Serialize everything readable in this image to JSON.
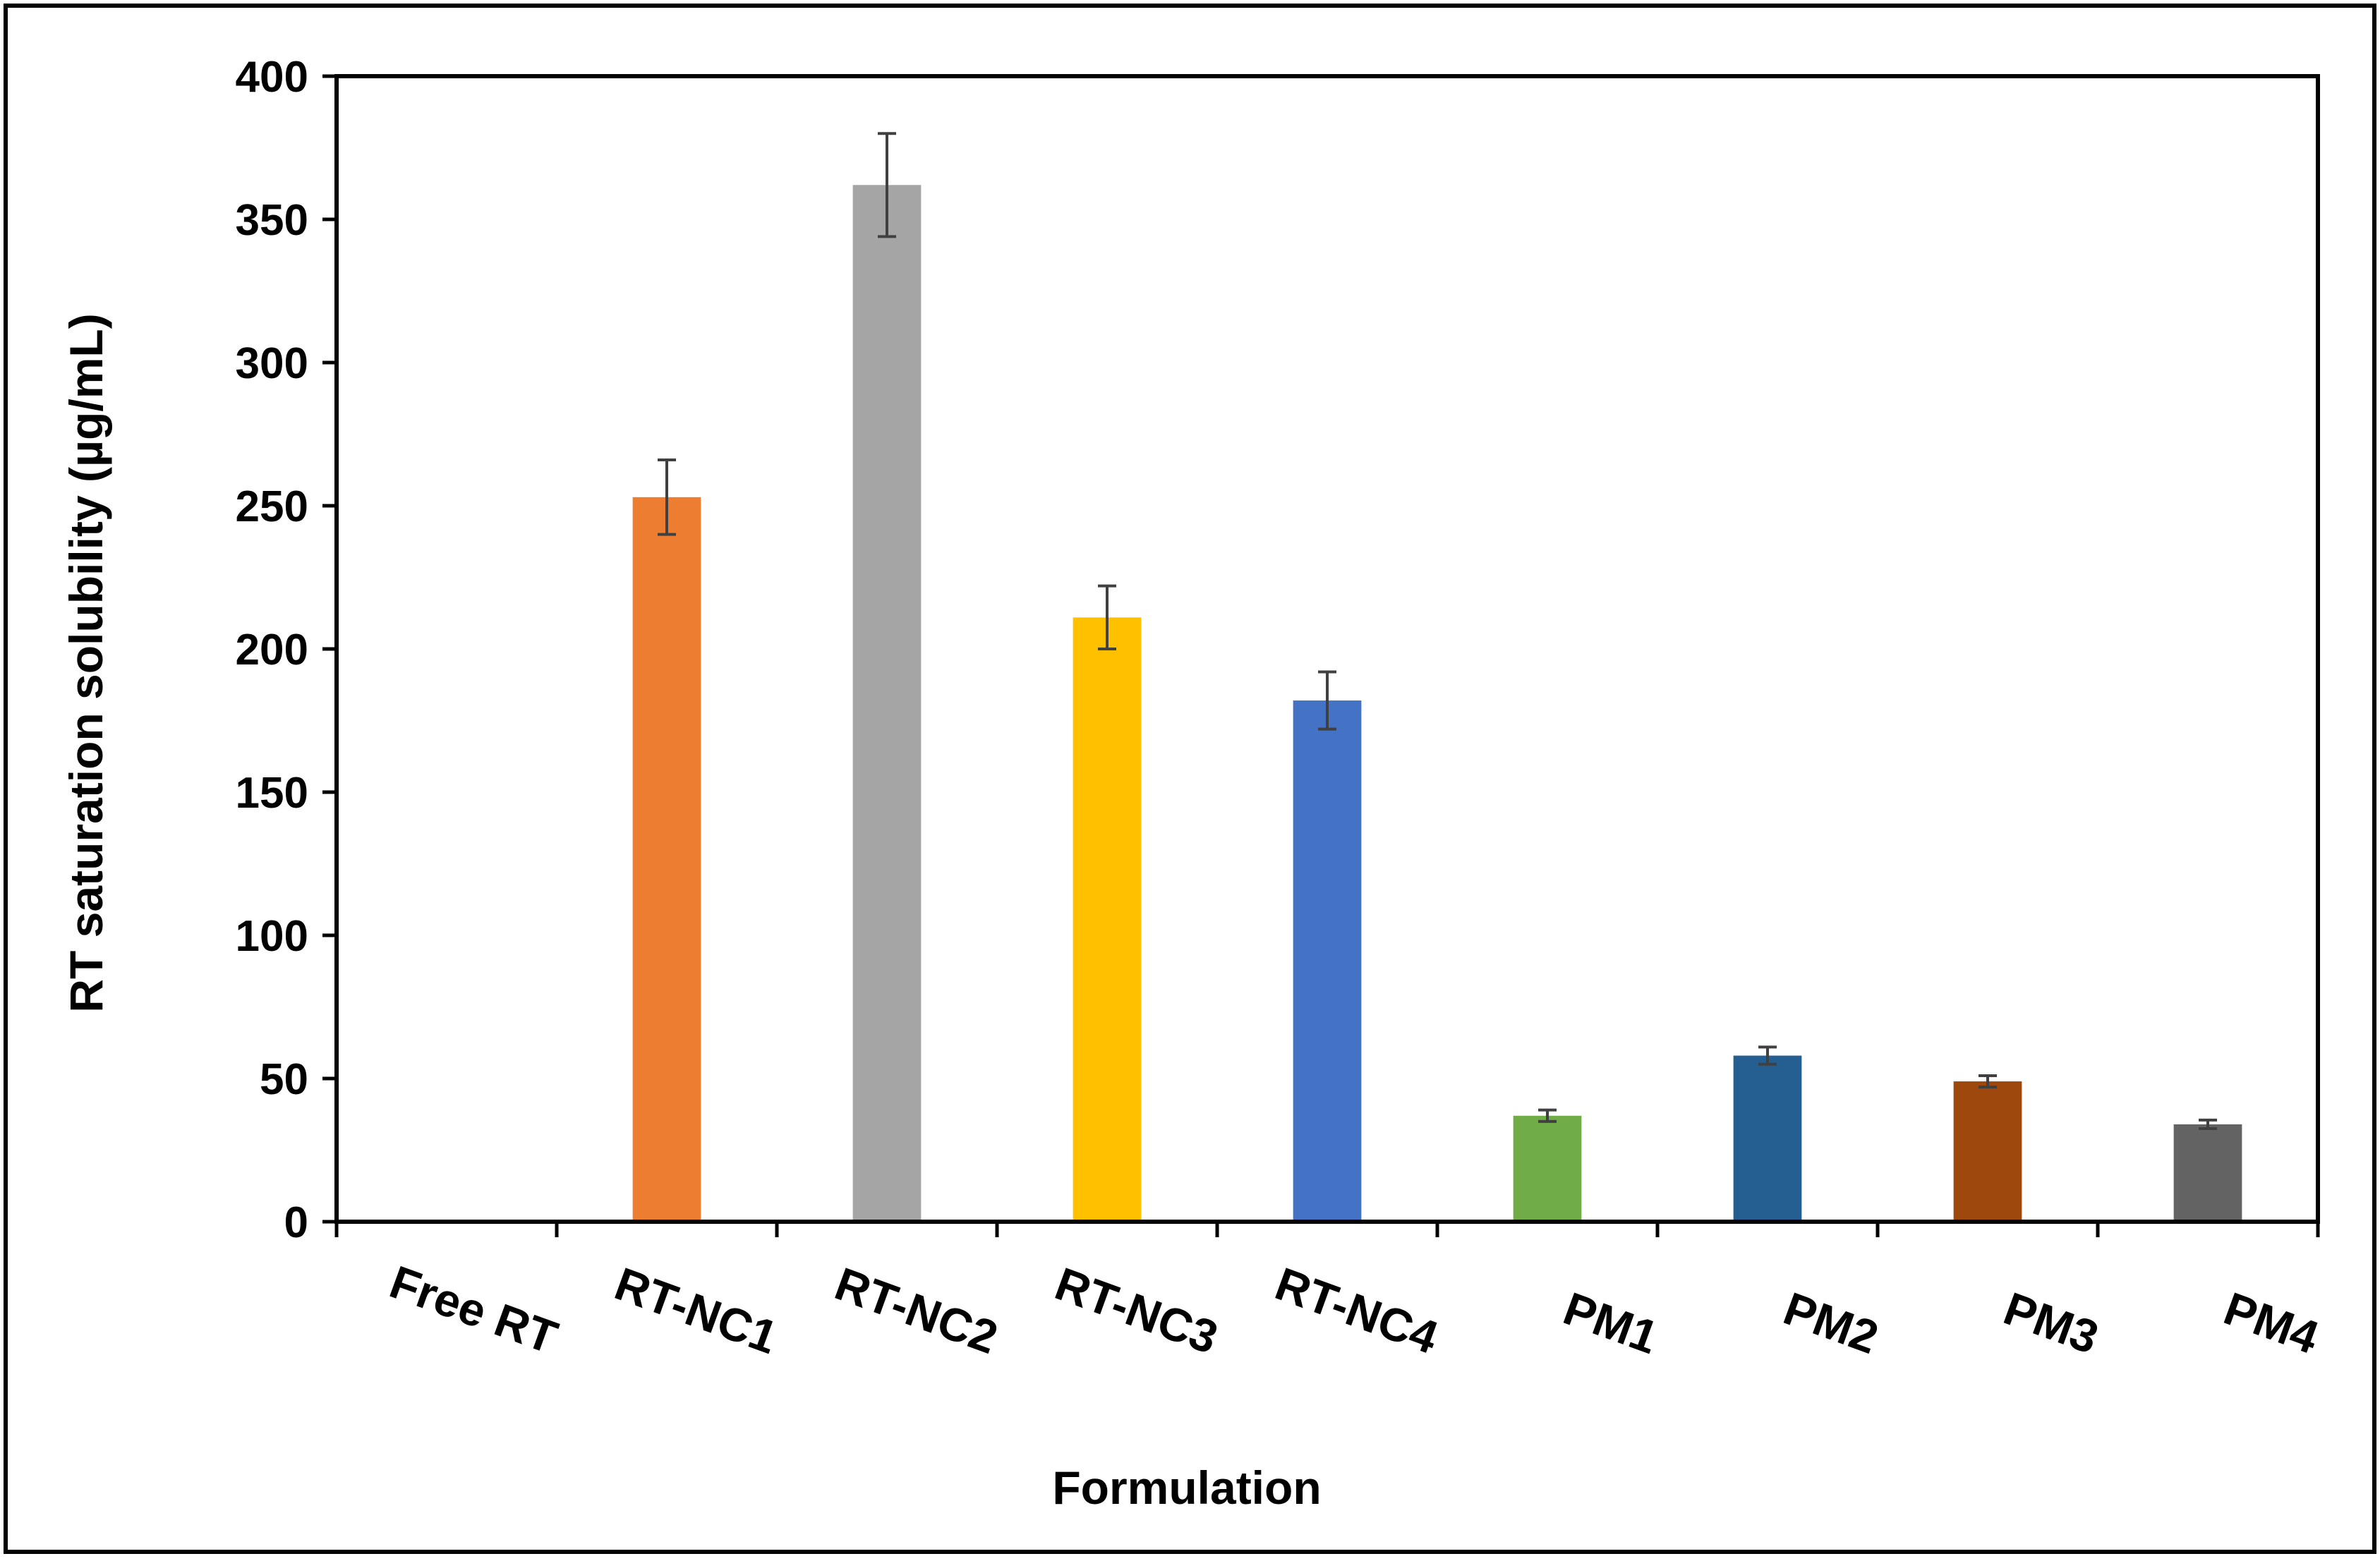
{
  "chart_data": {
    "type": "bar",
    "title": "",
    "xlabel": "Formulation",
    "ylabel": "RT saturation solubility (µg/mL)",
    "ylim": [
      0,
      400
    ],
    "yticks": [
      0,
      50,
      100,
      150,
      200,
      250,
      300,
      350,
      400
    ],
    "grid": false,
    "legend": "none",
    "categories": [
      "Free RT",
      "RT-NC1",
      "RT-NC2",
      "RT-NC3",
      "RT-NC4",
      "PM1",
      "PM2",
      "PM3",
      "PM4"
    ],
    "values": [
      0.5,
      253,
      362,
      211,
      182,
      37,
      58,
      49,
      34
    ],
    "errors": [
      0.3,
      13,
      18,
      11,
      10,
      2,
      3,
      2,
      1.5
    ],
    "colors": [
      "#7f7f7f",
      "#ed7d31",
      "#a5a5a5",
      "#ffc000",
      "#4472c4",
      "#70ad47",
      "#255e91",
      "#9e480e",
      "#636363"
    ],
    "error_bar_color": "#404040"
  }
}
